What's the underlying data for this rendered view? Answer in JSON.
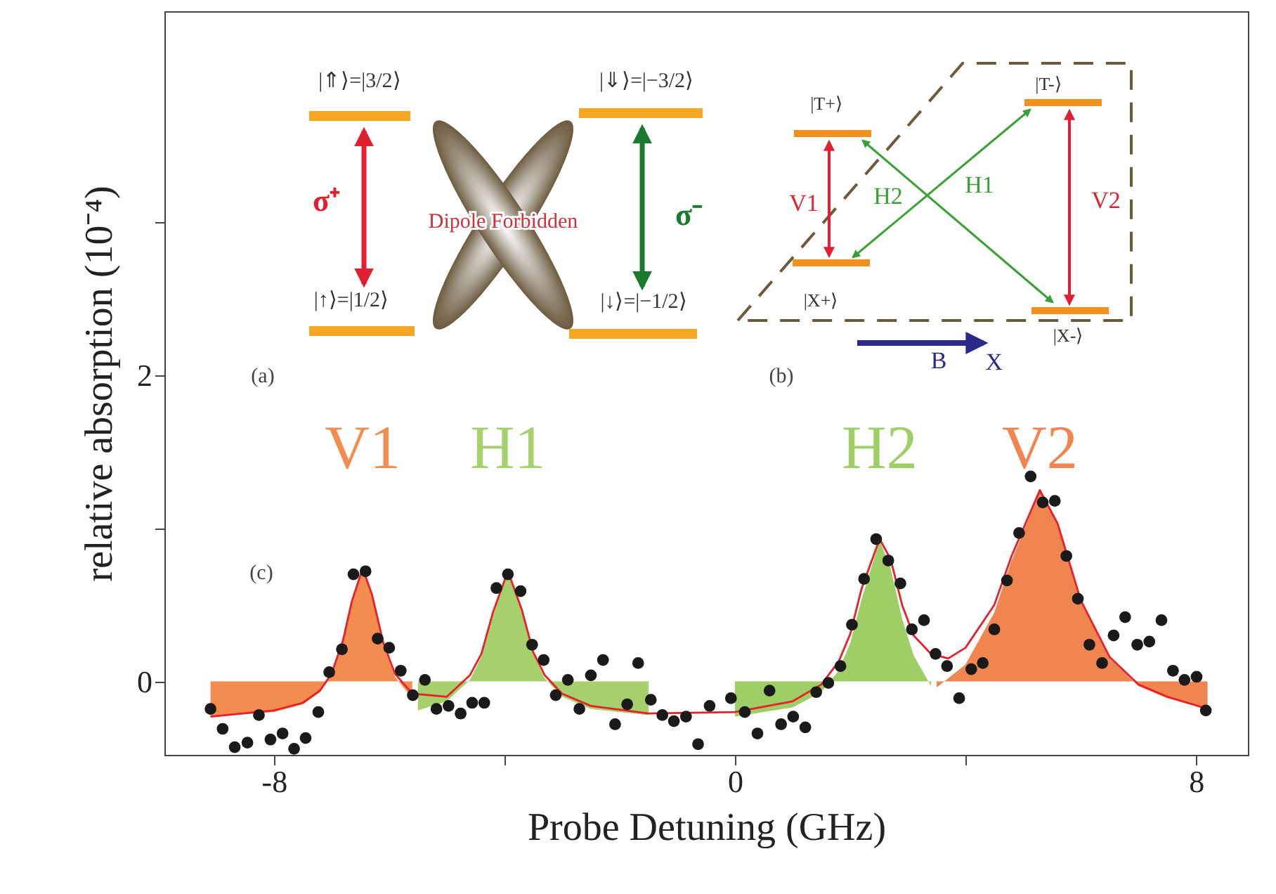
{
  "chart_data": {
    "type": "area",
    "xlabel": "Probe Detuning (GHz)",
    "ylabel": "relative absorption (10⁻⁴)",
    "xlim": [
      -9.9,
      8.9
    ],
    "ylim": [
      -0.48,
      4.38
    ],
    "xticks": [
      -8,
      {
        "value": -4,
        "label": null
      },
      0,
      {
        "value": 4,
        "label": null
      },
      8
    ],
    "yticks": [
      0,
      {
        "value": 1,
        "label": null
      },
      2,
      {
        "value": 3,
        "label": null
      }
    ],
    "grid": false,
    "legend": false,
    "annotations": [
      "(a)",
      "(b)",
      "(c)",
      "|⇑⟩=|3/2⟩",
      "|⇓⟩=|−3/2⟩",
      "|↑⟩=|1/2⟩",
      "|↓⟩=|−1/2⟩",
      "σ⁺",
      "σ⁻",
      "Dipole Forbidden",
      "|T+⟩",
      "|T-⟩",
      "|X+⟩",
      "|X-⟩",
      "V1",
      "H2",
      "H1",
      "V2",
      "B",
      "X⃗"
    ],
    "series": [
      {
        "name": "V1",
        "color": "#f28c4f",
        "x": [
          -9.1,
          -8,
          -7.5,
          -7.2,
          -7,
          -6.8,
          -6.65,
          -6.46,
          -6.3,
          -6.1,
          -5.9,
          -5.6
        ],
        "values": [
          -0.23,
          -0.2,
          -0.15,
          -0.07,
          0.04,
          0.26,
          0.51,
          0.73,
          0.56,
          0.23,
          0.03,
          -0.11
        ]
      },
      {
        "name": "H1",
        "color": "#a6d06c",
        "x": [
          -5.5,
          -5,
          -4.6,
          -4.4,
          -4.2,
          -3.94,
          -3.7,
          -3.5,
          -3.3,
          -3,
          -2.5,
          -1.5
        ],
        "values": [
          -0.19,
          -0.13,
          0.01,
          0.16,
          0.43,
          0.71,
          0.46,
          0.18,
          0.02,
          -0.1,
          -0.18,
          -0.22
        ]
      },
      {
        "name": "H2",
        "color": "#9fcd66",
        "x": [
          0,
          1,
          1.5,
          1.8,
          2,
          2.2,
          2.51,
          2.7,
          2.9,
          3.1,
          3.4
        ],
        "values": [
          -0.23,
          -0.17,
          -0.07,
          0.07,
          0.25,
          0.54,
          0.92,
          0.74,
          0.41,
          0.17,
          -0.03
        ]
      },
      {
        "name": "V2",
        "color": "#f08550",
        "x": [
          3.5,
          4,
          4.5,
          4.8,
          5.29,
          5.6,
          6,
          6.5,
          7,
          7.5,
          8.2
        ],
        "values": [
          -0.04,
          0.11,
          0.45,
          0.79,
          1.24,
          1.02,
          0.52,
          0.15,
          -0.03,
          -0.11,
          -0.18
        ]
      },
      {
        "type": "line",
        "color": "#e8202a",
        "x": [
          -9.1,
          -8,
          -7.5,
          -7.2,
          -7,
          -6.8,
          -6.65,
          -6.46,
          -6.3,
          -6.1,
          -5.9,
          -5.6,
          -5,
          -4.6,
          -4.4,
          -4.2,
          -3.94,
          -3.7,
          -3.5,
          -3.3,
          -3,
          -2.5,
          -1.5,
          0,
          1,
          1.5,
          1.8,
          2,
          2.2,
          2.51,
          2.7,
          2.9,
          3.1,
          3.4,
          3.7,
          4,
          4.5,
          4.8,
          5.29,
          5.6,
          6,
          6.5,
          7,
          7.5,
          8.2
        ],
        "values": [
          -0.23,
          -0.19,
          -0.14,
          -0.06,
          0.05,
          0.27,
          0.52,
          0.74,
          0.57,
          0.25,
          0.05,
          -0.08,
          -0.1,
          0.04,
          0.18,
          0.45,
          0.72,
          0.47,
          0.19,
          0.04,
          -0.08,
          -0.16,
          -0.21,
          -0.2,
          -0.13,
          -0.02,
          0.13,
          0.31,
          0.61,
          0.93,
          0.8,
          0.5,
          0.3,
          0.18,
          0.15,
          0.22,
          0.5,
          0.82,
          1.25,
          1.03,
          0.53,
          0.16,
          -0.02,
          -0.1,
          -0.18
        ]
      },
      {
        "type": "scatter",
        "color": "#1a1a1a",
        "marker": "circle",
        "x": [
          -9.1,
          -8.89,
          -8.68,
          -8.46,
          -8.26,
          -8.06,
          -7.85,
          -7.65,
          -7.45,
          -7.23,
          -7.04,
          -6.82,
          -6.62,
          -6.41,
          -6.2,
          -6,
          -5.8,
          -5.59,
          -5.38,
          -5.18,
          -4.97,
          -4.76,
          -4.56,
          -4.35,
          -4.14,
          -3.94,
          -3.72,
          -3.52,
          -3.32,
          -3.11,
          -2.9,
          -2.7,
          -2.5,
          -2.29,
          -2.08,
          -1.87,
          -1.68,
          -1.46,
          -1.26,
          -1.06,
          -0.85,
          -0.64,
          -0.44,
          -0.07,
          0.17,
          0.39,
          0.6,
          0.8,
          1.01,
          1.22,
          1.41,
          1.62,
          1.83,
          2.03,
          2.24,
          2.45,
          2.66,
          2.87,
          3.07,
          3.28,
          3.48,
          3.68,
          3.89,
          4.1,
          4.3,
          4.5,
          4.72,
          4.93,
          5.13,
          5.34,
          5.55,
          5.75,
          5.95,
          6.15,
          6.37,
          6.57,
          6.77,
          6.98,
          7.19,
          7.4,
          7.6,
          7.8,
          8.01,
          8.17
        ],
        "values": [
          -0.18,
          -0.31,
          -0.43,
          -0.4,
          -0.22,
          -0.38,
          -0.34,
          -0.44,
          -0.37,
          -0.2,
          0.06,
          0.21,
          0.7,
          0.72,
          0.28,
          0.22,
          0.07,
          -0.09,
          0.01,
          -0.18,
          -0.16,
          -0.21,
          -0.14,
          -0.14,
          0.61,
          0.7,
          0.59,
          0.24,
          0.14,
          -0.09,
          0.01,
          -0.18,
          0.04,
          0.14,
          -0.28,
          -0.15,
          0.12,
          -0.12,
          -0.22,
          -0.26,
          -0.23,
          -0.41,
          -0.16,
          -0.11,
          -0.2,
          -0.34,
          -0.06,
          -0.28,
          -0.23,
          -0.3,
          -0.07,
          -0.01,
          0.1,
          0.37,
          0.67,
          0.93,
          0.79,
          0.64,
          0.34,
          0.4,
          0.18,
          0.1,
          -0.11,
          0.08,
          0.12,
          0.34,
          0.66,
          0.97,
          1.34,
          1.17,
          1.18,
          0.82,
          0.54,
          0.24,
          0.12,
          0.3,
          0.42,
          0.24,
          0.26,
          0.4,
          0.07,
          0.01,
          0.03,
          -0.19
        ]
      }
    ]
  }
}
